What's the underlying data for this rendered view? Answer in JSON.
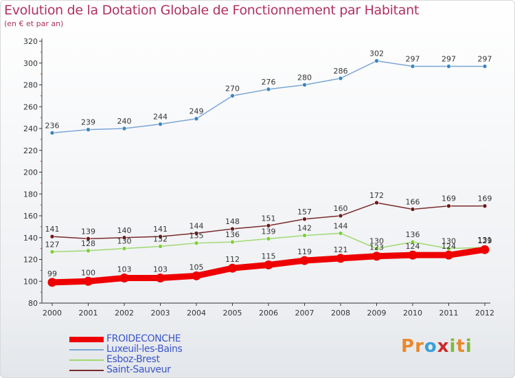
{
  "title": "Evolution de la Dotation Globale de Fonctionnement par Habitant",
  "subtitle": "(en € et par an)",
  "logo": {
    "letters": [
      "P",
      "r",
      "o",
      "x",
      "i",
      "t",
      "i"
    ],
    "colors": [
      "#e8892e",
      "#e8892e",
      "#3aa0d6",
      "#cc2a2a",
      "#7dbb3a",
      "#e8892e",
      "#7dbb3a"
    ]
  },
  "chart_data": {
    "type": "line",
    "x": [
      "2000",
      "2001",
      "2002",
      "2003",
      "2004",
      "2005",
      "2006",
      "2007",
      "2008",
      "2009",
      "2010",
      "2011",
      "2012"
    ],
    "ylim": [
      80,
      320
    ],
    "yticks": [
      "80",
      "100",
      "120",
      "140",
      "160",
      "180",
      "200",
      "220",
      "240",
      "260",
      "280",
      "300",
      "320"
    ],
    "grid": false,
    "legend_position": "bottom-left",
    "series": [
      {
        "name": "FROIDECONCHE",
        "color": "#ee0000",
        "values": [
          99,
          100,
          103,
          103,
          105,
          112,
          115,
          119,
          121,
          123,
          124,
          124,
          129
        ],
        "labels": [
          "99",
          "100",
          "103",
          "103",
          "105",
          "112",
          "115",
          "119",
          "121",
          "123",
          "124",
          "124",
          "129"
        ]
      },
      {
        "name": "Luxeuil-les-Bains",
        "color": "#7aa6d6",
        "marker": "#3a86c4",
        "values": [
          236,
          239,
          240,
          244,
          249,
          270,
          276,
          280,
          286,
          302,
          297,
          297,
          297
        ],
        "labels": [
          "236",
          "239",
          "240",
          "244",
          "249",
          "270",
          "276",
          "280",
          "286",
          "302",
          "297",
          "297",
          "297"
        ]
      },
      {
        "name": "Esboz-Brest",
        "color": "#9ed970",
        "marker": "#7ccf3a",
        "values": [
          127,
          128,
          130,
          132,
          135,
          136,
          139,
          142,
          144,
          130,
          136,
          130,
          131
        ],
        "labels": [
          "127",
          "128",
          "130",
          "132",
          "135",
          "136",
          "139",
          "142",
          "144",
          "130",
          "136",
          "130",
          "131"
        ]
      },
      {
        "name": "Saint-Sauveur",
        "color": "#7a2a2a",
        "marker": "#6a1a1a",
        "values": [
          141,
          139,
          140,
          141,
          144,
          148,
          151,
          157,
          160,
          172,
          166,
          169,
          169
        ],
        "labels": [
          "141",
          "139",
          "140",
          "141",
          "144",
          "148",
          "151",
          "157",
          "160",
          "172",
          "166",
          "169",
          "169"
        ]
      }
    ]
  }
}
